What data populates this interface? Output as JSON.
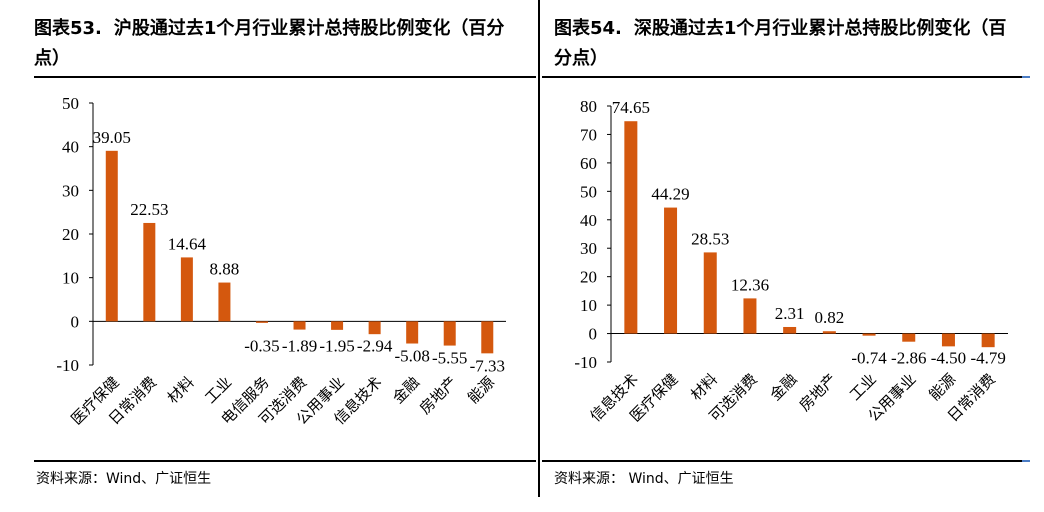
{
  "charts": [
    {
      "title_number": "图表53.",
      "title_text": "沪股通过去1个月行业累计总持股比例变化（百分点）",
      "source": "资料来源：Wind、广证恒生",
      "colors": {
        "bar": "#d4580e"
      },
      "chart_data": {
        "type": "bar",
        "categories": [
          "医疗保健",
          "日常消费",
          "材料",
          "工业",
          "电信服务",
          "可选消费",
          "公用事业",
          "信息技术",
          "金融",
          "房地产",
          "能源"
        ],
        "values": [
          39.05,
          22.53,
          14.64,
          8.88,
          -0.35,
          -1.89,
          -1.95,
          -2.94,
          -5.08,
          -5.55,
          -7.33
        ],
        "value_labels": [
          "39.05",
          "22.53",
          "14.64",
          "8.88",
          "-0.35",
          "-1.89",
          "-1.95",
          "-2.94",
          "-5.08",
          "-5.55",
          "-7.33"
        ],
        "ylim": [
          -10,
          50
        ],
        "yticks": [
          -10,
          0,
          10,
          20,
          30,
          40,
          50
        ],
        "ytick_labels": [
          "-10",
          "0",
          "10",
          "20",
          "30",
          "40",
          "50"
        ],
        "grid": false,
        "legend": "none"
      }
    },
    {
      "title_number": "图表54.",
      "title_text": "深股通过去1个月行业累计总持股比例变化（百分点）",
      "source": "资料来源：  Wind、广证恒生",
      "colors": {
        "bar": "#d4580e"
      },
      "chart_data": {
        "type": "bar",
        "categories": [
          "信息技术",
          "医疗保健",
          "材料",
          "可选消费",
          "金融",
          "房地产",
          "工业",
          "公用事业",
          "能源",
          "日常消费"
        ],
        "values": [
          74.65,
          44.29,
          28.53,
          12.36,
          2.31,
          0.82,
          -0.74,
          -2.86,
          -4.5,
          -4.79
        ],
        "value_labels": [
          "74.65",
          "44.29",
          "28.53",
          "12.36",
          "2.31",
          "0.82",
          "-0.74",
          "-2.86",
          "-4.50",
          "-4.79"
        ],
        "ylim": [
          -10,
          80
        ],
        "yticks": [
          -10,
          0,
          10,
          20,
          30,
          40,
          50,
          60,
          70,
          80
        ],
        "ytick_labels": [
          "-10",
          "0",
          "10",
          "20",
          "30",
          "40",
          "50",
          "60",
          "70",
          "80"
        ],
        "grid": false,
        "legend": "none"
      }
    }
  ]
}
